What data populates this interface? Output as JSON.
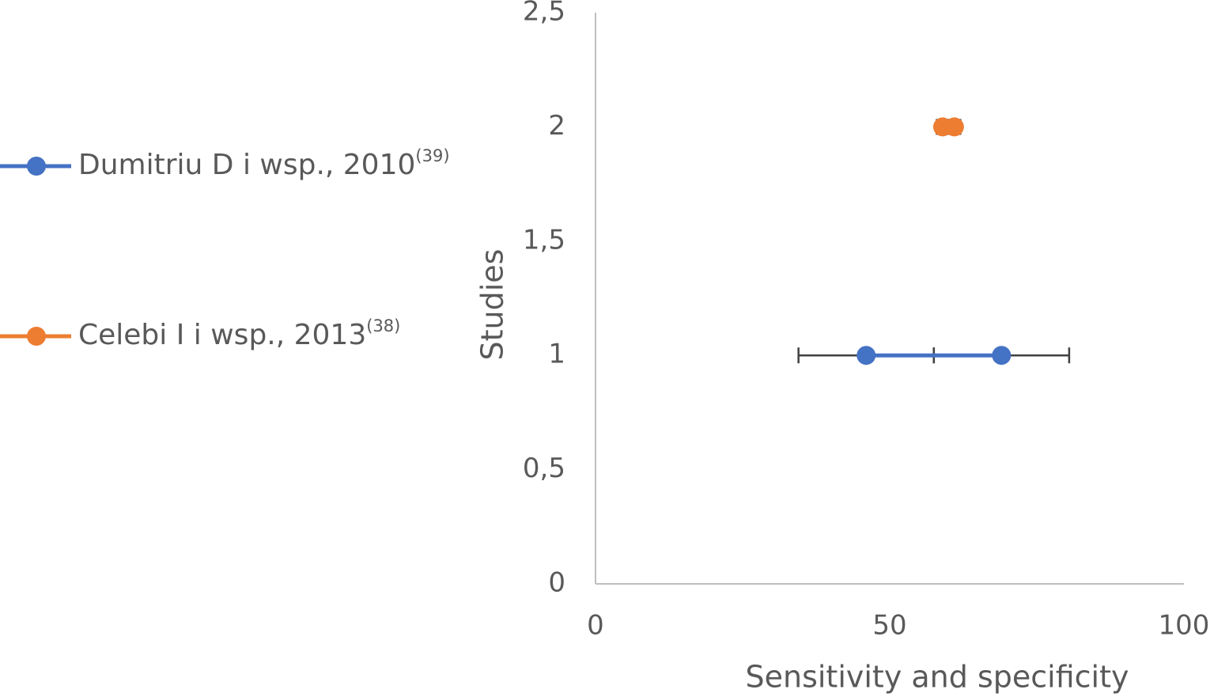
{
  "chart_data": {
    "type": "scatter",
    "x_label": "Sensitivity and specificity",
    "y_label": "Studies",
    "xlim": [
      0,
      100
    ],
    "xticks": [
      0,
      50,
      100
    ],
    "ylim": [
      0,
      2.5
    ],
    "yticks": [
      0,
      {
        "value": 0.5,
        "label": "0,5"
      },
      1,
      {
        "value": 1.5,
        "label": "1,5"
      },
      2,
      {
        "value": 2.5,
        "label": "2,5"
      }
    ],
    "grid": false,
    "legend": "left",
    "series": [
      {
        "name": "Dumitriu D i wsp., 2010",
        "ref": "(39)",
        "color": "#4472c4",
        "x": [
          46,
          69
        ],
        "y": [
          1,
          1
        ],
        "xerr": [
          11.5,
          11.5
        ]
      },
      {
        "name": "Celebi I i wsp., 2013",
        "ref": "(38)",
        "color": "#ed7d31",
        "x": [
          59,
          61
        ],
        "y": [
          2,
          2
        ],
        "xerr": [
          1,
          1
        ]
      }
    ]
  }
}
